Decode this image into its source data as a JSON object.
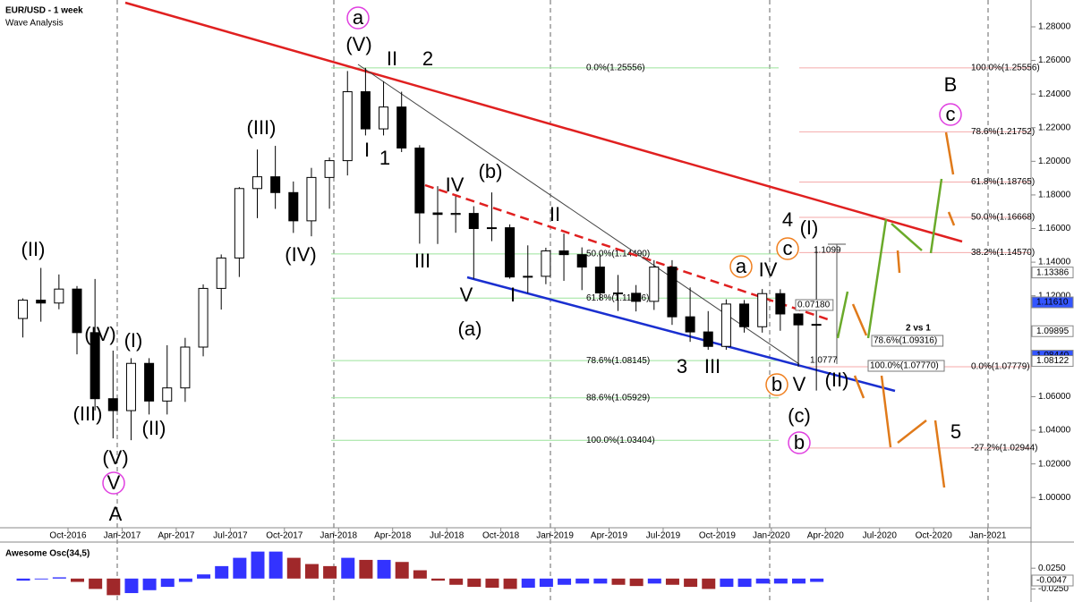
{
  "header": {
    "title": "EUR/USD - 1 week",
    "subtitle": "Wave Analysis"
  },
  "chart_data": {
    "type": "candlestick",
    "x": [
      "2016-07",
      "2016-08",
      "2016-09",
      "2016-10",
      "2016-11",
      "2016-12",
      "2017-01",
      "2017-02",
      "2017-03",
      "2017-04",
      "2017-05",
      "2017-06",
      "2017-07",
      "2017-08",
      "2017-09",
      "2017-10",
      "2017-11",
      "2017-12",
      "2018-01",
      "2018-02",
      "2018-03",
      "2018-04",
      "2018-05",
      "2018-06",
      "2018-07",
      "2018-08",
      "2018-09",
      "2018-10",
      "2018-11",
      "2018-12",
      "2019-01",
      "2019-02",
      "2019-03",
      "2019-04",
      "2019-05",
      "2019-06",
      "2019-07",
      "2019-08",
      "2019-09",
      "2019-10",
      "2019-11",
      "2019-12",
      "2020-01",
      "2020-02",
      "2020-03"
    ],
    "ohlc": [
      [
        1.1065,
        1.1185,
        1.0952,
        1.1174
      ],
      [
        1.1174,
        1.1366,
        1.1046,
        1.1157
      ],
      [
        1.1157,
        1.1327,
        1.112,
        1.124
      ],
      [
        1.124,
        1.1258,
        1.0852,
        1.0981
      ],
      [
        1.0981,
        1.13,
        1.0518,
        1.0588
      ],
      [
        1.0588,
        1.0874,
        1.0352,
        1.0517
      ],
      [
        1.0517,
        1.0829,
        1.0341,
        1.0798
      ],
      [
        1.0798,
        1.0829,
        1.0494,
        1.0574
      ],
      [
        1.0574,
        1.0906,
        1.0494,
        1.0652
      ],
      [
        1.0652,
        1.095,
        1.0569,
        1.0895
      ],
      [
        1.0895,
        1.1268,
        1.084,
        1.1244
      ],
      [
        1.1244,
        1.1446,
        1.1118,
        1.1425
      ],
      [
        1.1425,
        1.1847,
        1.1312,
        1.1838
      ],
      [
        1.1838,
        1.207,
        1.1662,
        1.1908
      ],
      [
        1.1908,
        1.2092,
        1.1717,
        1.1814
      ],
      [
        1.1814,
        1.188,
        1.1574,
        1.1646
      ],
      [
        1.1646,
        1.1961,
        1.1554,
        1.1904
      ],
      [
        1.1904,
        1.2023,
        1.1718,
        1.2004
      ],
      [
        1.2004,
        1.2537,
        1.1916,
        1.2414
      ],
      [
        1.2414,
        1.2556,
        1.2154,
        1.2193
      ],
      [
        1.2193,
        1.2476,
        1.2154,
        1.2323
      ],
      [
        1.2323,
        1.2414,
        1.2055,
        1.2079
      ],
      [
        1.2079,
        1.2096,
        1.151,
        1.1693
      ],
      [
        1.1693,
        1.1852,
        1.1508,
        1.1684
      ],
      [
        1.1684,
        1.1791,
        1.1575,
        1.169
      ],
      [
        1.169,
        1.1733,
        1.1301,
        1.16
      ],
      [
        1.16,
        1.1815,
        1.1525,
        1.1605
      ],
      [
        1.1605,
        1.1625,
        1.1302,
        1.1312
      ],
      [
        1.1312,
        1.15,
        1.1216,
        1.1316
      ],
      [
        1.1316,
        1.1486,
        1.1269,
        1.1467
      ],
      [
        1.1467,
        1.157,
        1.1289,
        1.1445
      ],
      [
        1.1445,
        1.1488,
        1.1234,
        1.1371
      ],
      [
        1.1371,
        1.1448,
        1.1176,
        1.1217
      ],
      [
        1.1217,
        1.1324,
        1.111,
        1.1215
      ],
      [
        1.1215,
        1.1264,
        1.1107,
        1.1167
      ],
      [
        1.1167,
        1.1412,
        1.1116,
        1.1371
      ],
      [
        1.1371,
        1.1412,
        1.1027,
        1.1075
      ],
      [
        1.1075,
        1.125,
        1.0926,
        1.0985
      ],
      [
        1.0985,
        1.1109,
        1.0879,
        1.0899
      ],
      [
        1.0899,
        1.1179,
        1.0879,
        1.1151
      ],
      [
        1.1151,
        1.1175,
        1.0981,
        1.1016
      ],
      [
        1.1016,
        1.124,
        1.0981,
        1.1213
      ],
      [
        1.1213,
        1.1239,
        1.0992,
        1.1092
      ],
      [
        1.1092,
        1.1096,
        1.0778,
        1.1027
      ],
      [
        1.1027,
        1.1495,
        1.0636,
        1.103
      ]
    ],
    "colors": {
      "up": "#ffffff",
      "down": "#000000"
    },
    "ylim": [
      0.99,
      1.29
    ],
    "yticks": [
      {
        "value": 1.28,
        "label": "1.28000"
      },
      {
        "value": 1.26,
        "label": "1.26000"
      },
      {
        "value": 1.24,
        "label": "1.24000"
      },
      {
        "value": 1.22,
        "label": "1.22000"
      },
      {
        "value": 1.2,
        "label": "1.20000"
      },
      {
        "value": 1.18,
        "label": "1.18000"
      },
      {
        "value": 1.16,
        "label": "1.16000"
      },
      {
        "value": 1.14,
        "label": "1.14000"
      },
      {
        "value": 1.12,
        "label": "1.12000"
      },
      {
        "value": 1.1,
        "label": "1.10000"
      },
      {
        "value": 1.06,
        "label": "1.06000"
      },
      {
        "value": 1.04,
        "label": "1.04000"
      },
      {
        "value": 1.02,
        "label": "1.02000"
      },
      {
        "value": 1.0,
        "label": "1.00000"
      }
    ],
    "xticks": [
      {
        "value": "2016-10",
        "label": "Oct-2016"
      },
      {
        "value": "2017-01",
        "label": "Jan-2017"
      },
      {
        "value": "2017-04",
        "label": "Apr-2017"
      },
      {
        "value": "2017-07",
        "label": "Jul-2017"
      },
      {
        "value": "2017-10",
        "label": "Oct-2017"
      },
      {
        "value": "2018-01",
        "label": "Jan-2018"
      },
      {
        "value": "2018-04",
        "label": "Apr-2018"
      },
      {
        "value": "2018-07",
        "label": "Jul-2018"
      },
      {
        "value": "2018-10",
        "label": "Oct-2018"
      },
      {
        "value": "2019-01",
        "label": "Jan-2019"
      },
      {
        "value": "2019-04",
        "label": "Apr-2019"
      },
      {
        "value": "2019-07",
        "label": "Jul-2019"
      },
      {
        "value": "2019-10",
        "label": "Oct-2019"
      },
      {
        "value": "2020-01",
        "label": "Jan-2020"
      },
      {
        "value": "2020-04",
        "label": "Apr-2020"
      },
      {
        "value": "2020-07",
        "label": "Jul-2020"
      },
      {
        "value": "2020-10",
        "label": "Oct-2020"
      },
      {
        "value": "2021-01",
        "label": "Jan-2021"
      }
    ],
    "price_tags": [
      {
        "value": 1.13386,
        "label": "1.13386",
        "color": "#ffffff"
      },
      {
        "value": 1.1161,
        "label": "1.11610",
        "color": "#3355ff"
      },
      {
        "value": 1.09895,
        "label": "1.09895",
        "color": "#ffffff"
      },
      {
        "value": 1.0844,
        "label": "1.08440",
        "color": "#3355ff"
      },
      {
        "value": 1.08122,
        "label": "1.08122",
        "color": "#ffffff"
      }
    ],
    "fib_levels": [
      {
        "label": "0.0%(1.25556)",
        "value": 1.25556,
        "color": "#9be39b",
        "side": "left"
      },
      {
        "label": "50.0%(1.14490)",
        "value": 1.1449,
        "color": "#9be39b",
        "side": "left"
      },
      {
        "label": "61.8%(1.11866)",
        "value": 1.11866,
        "color": "#9be39b",
        "side": "left"
      },
      {
        "label": "78.6%(1.08145)",
        "value": 1.08145,
        "color": "#9be39b",
        "side": "left"
      },
      {
        "label": "88.6%(1.05929)",
        "value": 1.05929,
        "color": "#9be39b",
        "side": "left"
      },
      {
        "label": "100.0%(1.03404)",
        "value": 1.03404,
        "color": "#9be39b",
        "side": "left"
      },
      {
        "label": "100.0%(1.25556)",
        "value": 1.25556,
        "color": "#f4aaaa",
        "side": "right"
      },
      {
        "label": "78.6%(1.21752)",
        "value": 1.21752,
        "color": "#f4aaaa",
        "side": "right"
      },
      {
        "label": "61.8%(1.18765)",
        "value": 1.18765,
        "color": "#f4aaaa",
        "side": "right"
      },
      {
        "label": "50.0%(1.16668)",
        "value": 1.16668,
        "color": "#f4aaaa",
        "side": "right"
      },
      {
        "label": "38.2%(1.14570)",
        "value": 1.1457,
        "color": "#f4aaaa",
        "side": "right"
      },
      {
        "label": "0.0%(1.07779)",
        "value": 1.07779,
        "color": "#f4aaaa",
        "side": "right"
      },
      {
        "label": "-27.2%(1.02944)",
        "value": 1.02944,
        "color": "#f4aaaa",
        "side": "right"
      }
    ],
    "notes": [
      {
        "text": "0.07180"
      },
      {
        "text": "1.1099"
      },
      {
        "text": "1.0777"
      },
      {
        "text": "2 vs 1"
      },
      {
        "text": "78.6%(1.09316)"
      },
      {
        "text": "100.0%(1.07770)"
      }
    ],
    "wave_labels": [
      {
        "text": "a",
        "color": "#e040e0",
        "circled": true
      },
      {
        "text": "(V)",
        "color": "#7a1f7a"
      },
      {
        "text": "II",
        "color": "#1a2fd0"
      },
      {
        "text": "2",
        "color": "#e00000"
      },
      {
        "text": "(III)",
        "color": "#7a1f7a"
      },
      {
        "text": "I",
        "color": "#1a2fd0"
      },
      {
        "text": "1",
        "color": "#e00000"
      },
      {
        "text": "IV",
        "color": "#1a2fd0"
      },
      {
        "text": "(b)",
        "color": "#7a1f7a"
      },
      {
        "text": "II",
        "color": "#1a2fd0"
      },
      {
        "text": "III",
        "color": "#1a2fd0"
      },
      {
        "text": "(IV)",
        "color": "#7a1f7a"
      },
      {
        "text": "V",
        "color": "#1a2fd0"
      },
      {
        "text": "I",
        "color": "#1a2fd0"
      },
      {
        "text": "(a)",
        "color": "#7a1f7a"
      },
      {
        "text": "(II)",
        "color": "#7a1f7a"
      },
      {
        "text": "(IV)",
        "color": "#7a1f7a"
      },
      {
        "text": "(I)",
        "color": "#7a1f7a"
      },
      {
        "text": "(III)",
        "color": "#7a1f7a"
      },
      {
        "text": "(II)",
        "color": "#7a1f7a"
      },
      {
        "text": "(V)",
        "color": "#7a1f7a"
      },
      {
        "text": "V",
        "color": "#e040e0",
        "circled": true
      },
      {
        "text": "A",
        "color": "#b89be6"
      },
      {
        "text": "3",
        "color": "#e00000"
      },
      {
        "text": "III",
        "color": "#1a2fd0"
      },
      {
        "text": "a",
        "color": "#f08020",
        "circled": true
      },
      {
        "text": "IV",
        "color": "#1a2fd0"
      },
      {
        "text": "4",
        "color": "#e00000"
      },
      {
        "text": "(I)",
        "color": "#7a1f7a"
      },
      {
        "text": "c",
        "color": "#f08020",
        "circled": true
      },
      {
        "text": "b",
        "color": "#f08020",
        "circled": true
      },
      {
        "text": "V",
        "color": "#1a2fd0"
      },
      {
        "text": "(II)",
        "color": "#7a1f7a"
      },
      {
        "text": "(c)",
        "color": "#7a1f7a"
      },
      {
        "text": "b",
        "color": "#e040e0",
        "circled": true
      },
      {
        "text": "5",
        "color": "#e00000"
      },
      {
        "text": "B",
        "color": "#b89be6"
      },
      {
        "text": "c",
        "color": "#e040e0",
        "circled": true
      }
    ],
    "oscillator": {
      "type": "bar",
      "title": "Awesome Osc(34,5)",
      "values": [
        -0.005,
        -0.002,
        0.003,
        -0.008,
        -0.025,
        -0.04,
        -0.035,
        -0.028,
        -0.02,
        -0.008,
        0.01,
        0.03,
        0.05,
        0.065,
        0.065,
        0.05,
        0.035,
        0.03,
        0.05,
        0.045,
        0.045,
        0.04,
        0.02,
        -0.005,
        -0.015,
        -0.02,
        -0.022,
        -0.025,
        -0.022,
        -0.02,
        -0.015,
        -0.012,
        -0.012,
        -0.015,
        -0.018,
        -0.012,
        -0.015,
        -0.02,
        -0.025,
        -0.02,
        -0.02,
        -0.012,
        -0.012,
        -0.012,
        -0.008
      ],
      "colors": {
        "up": "#3333ff",
        "down": "#a0282a"
      },
      "ylim": [
        -0.05,
        0.075
      ],
      "yticks": [
        {
          "value": 0.025,
          "label": "0.0250"
        },
        {
          "value": -0.025,
          "label": "-0.0250"
        }
      ],
      "last_tag": {
        "value": -0.0047,
        "label": "-0.0047"
      }
    }
  }
}
